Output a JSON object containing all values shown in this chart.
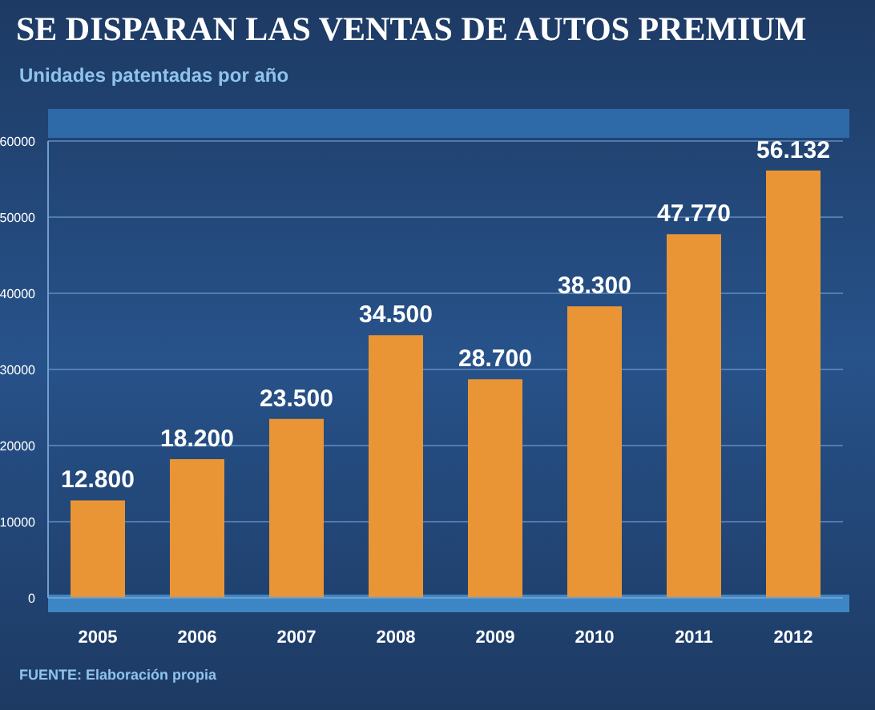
{
  "chart_data": {
    "type": "bar",
    "title": "SE DISPARAN LAS VENTAS DE AUTOS PREMIUM",
    "subtitle": "Unidades patentadas por año",
    "categories": [
      "2005",
      "2006",
      "2007",
      "2008",
      "2009",
      "2010",
      "2011",
      "2012"
    ],
    "values": [
      12800,
      18200,
      23500,
      34500,
      28700,
      38300,
      47770,
      56132
    ],
    "value_labels": [
      "12.800",
      "18.200",
      "23.500",
      "34.500",
      "28.700",
      "38.300",
      "47.770",
      "56.132"
    ],
    "color": "#ea9535",
    "ylim": [
      0,
      60000
    ],
    "yticks": [
      0,
      10000,
      20000,
      30000,
      40000,
      50000,
      60000
    ],
    "grid": "y",
    "annotations": [
      "FUENTE: Elaboración propia"
    ]
  }
}
